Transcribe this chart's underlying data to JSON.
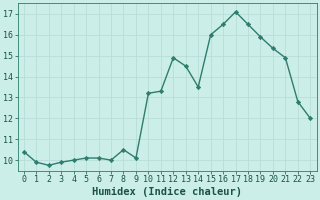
{
  "x": [
    0,
    1,
    2,
    3,
    4,
    5,
    6,
    7,
    8,
    9,
    10,
    11,
    12,
    13,
    14,
    15,
    16,
    17,
    18,
    19,
    20,
    21,
    22,
    23
  ],
  "y": [
    10.4,
    9.9,
    9.75,
    9.9,
    10.0,
    10.1,
    10.1,
    10.0,
    10.5,
    10.1,
    13.2,
    13.3,
    14.9,
    14.5,
    13.5,
    16.0,
    16.5,
    17.1,
    16.5,
    15.9,
    15.35,
    14.9,
    12.8,
    12.0
  ],
  "line_color": "#2e7d6e",
  "marker": "D",
  "marker_size": 2.2,
  "bg_color": "#cceee8",
  "grid_color": "#b8ddd8",
  "axis_color": "#2e7d6e",
  "xlabel": "Humidex (Indice chaleur)",
  "xlim": [
    -0.5,
    23.5
  ],
  "ylim": [
    9.5,
    17.5
  ],
  "yticks": [
    10,
    11,
    12,
    13,
    14,
    15,
    16,
    17
  ],
  "xticks": [
    0,
    1,
    2,
    3,
    4,
    5,
    6,
    7,
    8,
    9,
    10,
    11,
    12,
    13,
    14,
    15,
    16,
    17,
    18,
    19,
    20,
    21,
    22,
    23
  ],
  "font_color": "#1a5248",
  "linewidth": 1.0,
  "xlabel_fontsize": 7.5,
  "tick_fontsize": 6.0
}
